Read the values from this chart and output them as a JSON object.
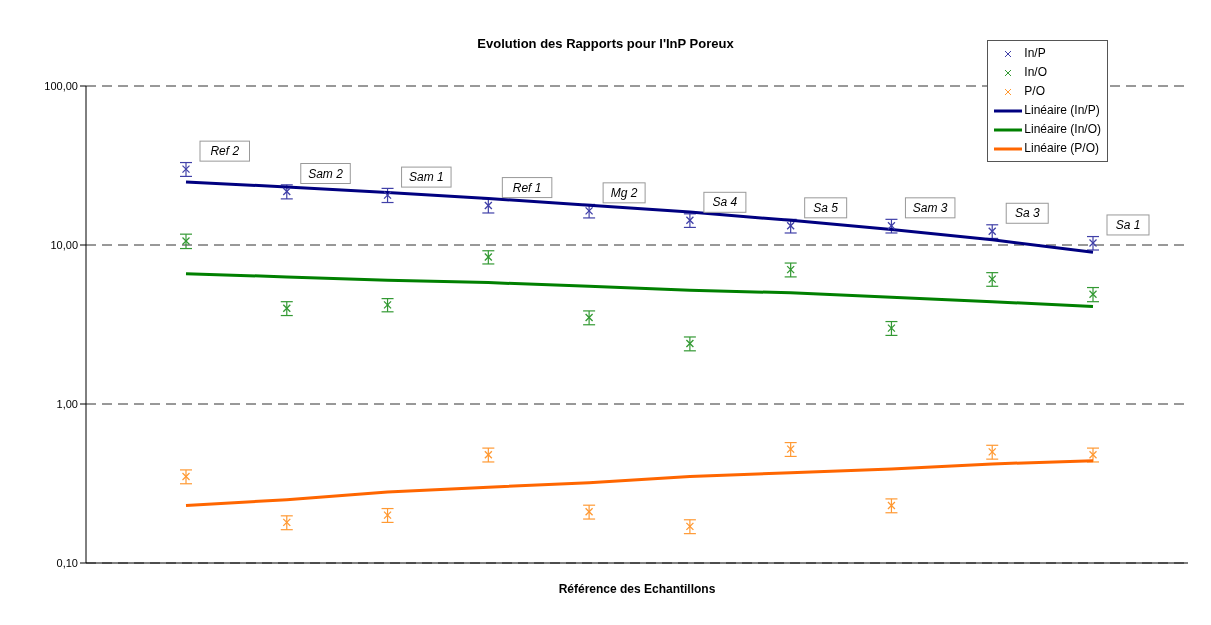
{
  "chart_data": {
    "type": "scatter",
    "title": "Evolution des Rapports pour l'InP Poreux",
    "xlabel": "Référence des Echantillons",
    "categories": [
      null,
      null,
      null,
      null,
      null,
      null,
      null,
      null,
      null,
      null
    ],
    "ylim": [
      0.1,
      100
    ],
    "log": "y",
    "yticks": [
      {
        "value": 0.1,
        "label": "0,10"
      },
      {
        "value": 1,
        "label": "1,00"
      },
      {
        "value": 10,
        "label": "10,00"
      },
      {
        "value": 100,
        "label": "100,00"
      }
    ],
    "grid": "y",
    "legend": "top right",
    "marker": "cross",
    "series": [
      {
        "name": "In/P",
        "color": "#4040a8",
        "values": [
          30,
          21.7,
          20.6,
          17.7,
          16.4,
          14.3,
          13.2,
          13.2,
          12.2,
          10.3
        ],
        "errors": [
          3,
          2.2,
          2.1,
          1.8,
          1.6,
          1.4,
          1.3,
          1.3,
          1.2,
          1.0
        ]
      },
      {
        "name": "In/O",
        "color": "#339933",
        "values": [
          10.6,
          4.0,
          4.2,
          8.4,
          3.5,
          2.4,
          7.0,
          3.0,
          6.1,
          4.9
        ],
        "errors": [
          1.1,
          0.4,
          0.4,
          0.8,
          0.35,
          0.24,
          0.7,
          0.3,
          0.6,
          0.5
        ]
      },
      {
        "name": "P/O",
        "color": "#ff9933",
        "values": [
          0.35,
          0.18,
          0.2,
          0.48,
          0.21,
          0.17,
          0.52,
          0.23,
          0.5,
          0.48
        ],
        "errors": [
          0.035,
          0.018,
          0.02,
          0.048,
          0.021,
          0.017,
          0.052,
          0.023,
          0.05,
          0.048
        ]
      },
      {
        "name": "Linéaire (In/P)",
        "type": "line",
        "marker": "none",
        "color": "#000080",
        "values": [
          24.9,
          23.2,
          21.4,
          19.6,
          17.8,
          16.1,
          14.3,
          12.5,
          10.8,
          9.0
        ]
      },
      {
        "name": "Linéaire (In/O)",
        "type": "line",
        "marker": "none",
        "color": "#008000",
        "values": [
          6.6,
          6.3,
          6.0,
          5.8,
          5.5,
          5.2,
          5.0,
          4.7,
          4.4,
          4.1
        ]
      },
      {
        "name": "Linéaire (P/O)",
        "type": "line",
        "marker": "none",
        "color": "#ff6600",
        "values": [
          0.23,
          0.25,
          0.28,
          0.3,
          0.32,
          0.35,
          0.37,
          0.39,
          0.42,
          0.44
        ]
      }
    ],
    "annotations": [
      "Ref 2",
      "Sam 2",
      "Sam 1",
      "Ref 1",
      "Mg 2",
      "Sa 4",
      "Sa 5",
      "Sam 3",
      "Sa 3",
      "Sa 1"
    ]
  }
}
